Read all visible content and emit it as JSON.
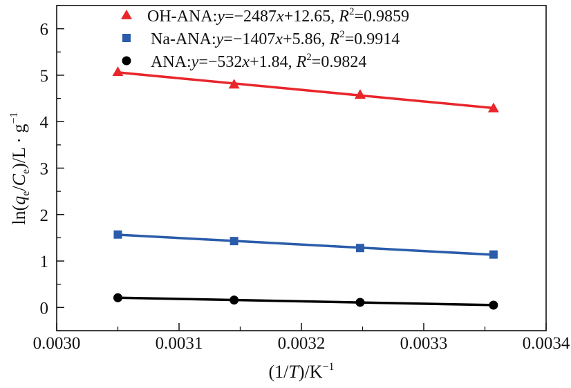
{
  "chart_data": {
    "type": "scatter",
    "x": [
      0.00305,
      0.003145,
      0.003248,
      0.003357
    ],
    "series": [
      {
        "name": "OH-ANA",
        "marker": "triangle",
        "color": "#e8262b",
        "values": [
          5.07,
          4.8,
          4.58,
          4.29
        ],
        "fit": {
          "slope": -2487,
          "intercept": 12.65
        },
        "legend": {
          "prefix": "OH-ANA:",
          "v": "y",
          "eq1": "=−2487",
          "x": "x",
          "eq2": "+12.65, ",
          "r": "R",
          "sup": "2",
          "r2val": "=0.9859"
        }
      },
      {
        "name": "Na-ANA",
        "marker": "square",
        "color": "#2a5caa",
        "values": [
          1.57,
          1.43,
          1.28,
          1.14
        ],
        "fit": {
          "slope": -1407,
          "intercept": 5.86
        },
        "legend": {
          "prefix": "Na-ANA:",
          "v": "y",
          "eq1": "=−1407",
          "x": "x",
          "eq2": "+5.86, ",
          "r": "R",
          "sup": "2",
          "r2val": "=0.9914"
        }
      },
      {
        "name": "ANA",
        "marker": "circle",
        "color": "#000000",
        "values": [
          0.21,
          0.16,
          0.11,
          0.05
        ],
        "fit": {
          "slope": -532,
          "intercept": 1.84
        },
        "legend": {
          "prefix": "ANA:",
          "v": "y",
          "eq1": "=−532",
          "x": "x",
          "eq2": "+1.84, ",
          "r": "R",
          "sup": "2",
          "r2val": "=0.9824"
        }
      }
    ],
    "xlim": [
      0.003,
      0.0034
    ],
    "ylim": [
      -0.5,
      6.5
    ],
    "xticks": [
      "0.0030",
      "0.0031",
      "0.0032",
      "0.0033",
      "0.0034"
    ],
    "yticks": [
      "0",
      "1",
      "2",
      "3",
      "4",
      "5",
      "6"
    ],
    "xlabel": {
      "a": "(1/",
      "t": "T",
      "b": ")/K",
      "sup": "−1"
    },
    "ylabel": {
      "a": "ln(",
      "q": "q",
      "qs": "e",
      "mid": "/",
      "c": "C",
      "cs": "e",
      "b": ")/L · g",
      "sup": "−1"
    },
    "legend_position": "top"
  }
}
